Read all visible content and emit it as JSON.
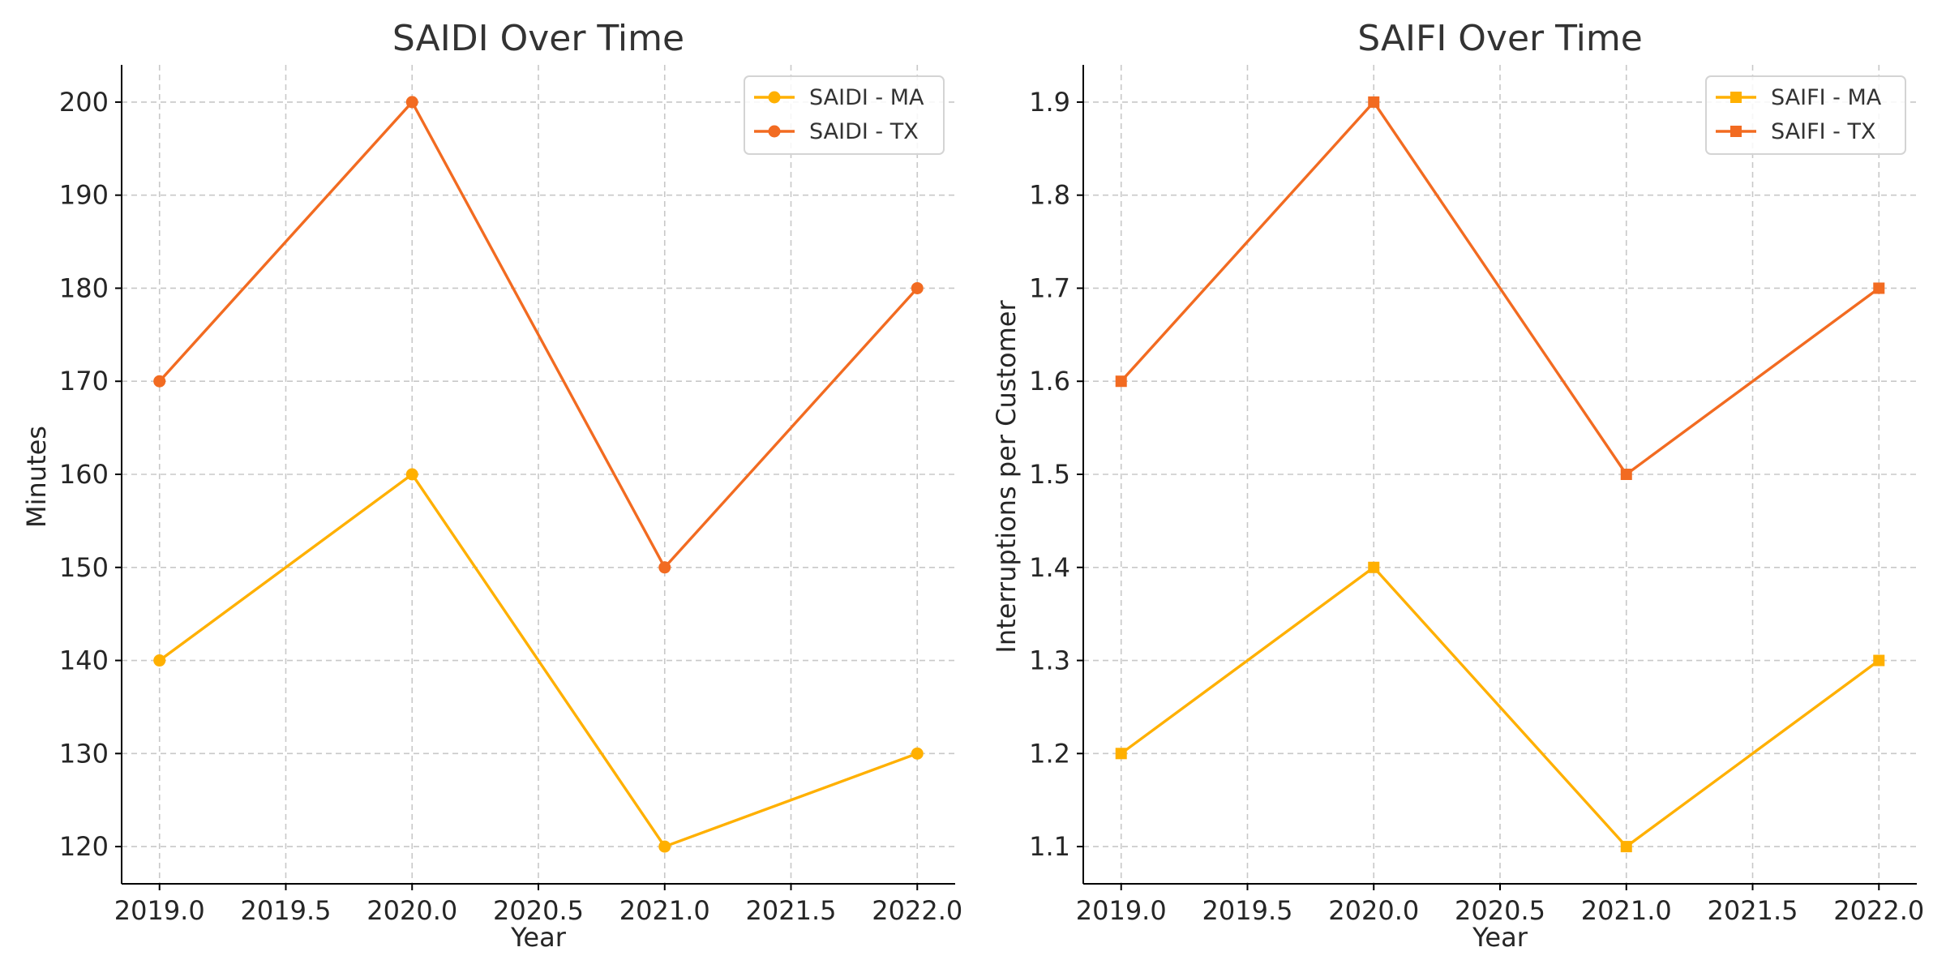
{
  "chart_data": [
    {
      "type": "line",
      "title": "SAIDI Over Time",
      "xlabel": "Year",
      "ylabel": "Minutes",
      "x": [
        2019,
        2020,
        2021,
        2022
      ],
      "xlim": [
        2018.85,
        2022.15
      ],
      "ylim": [
        116,
        204
      ],
      "xticks": [
        2019.0,
        2019.5,
        2020.0,
        2020.5,
        2021.0,
        2021.5,
        2022.0
      ],
      "xtick_labels": [
        "2019.0",
        "2019.5",
        "2020.0",
        "2020.5",
        "2021.0",
        "2021.5",
        "2022.0"
      ],
      "yticks": [
        120,
        130,
        140,
        150,
        160,
        170,
        180,
        190,
        200
      ],
      "ytick_labels": [
        "120",
        "130",
        "140",
        "150",
        "160",
        "170",
        "180",
        "190",
        "200"
      ],
      "grid": true,
      "legend_position": "top-right",
      "marker": "circle",
      "series": [
        {
          "name": "SAIDI - MA",
          "color": "#FFB000",
          "values": [
            140,
            160,
            120,
            130
          ]
        },
        {
          "name": "SAIDI - TX",
          "color": "#F26B21",
          "values": [
            170,
            200,
            150,
            180
          ]
        }
      ]
    },
    {
      "type": "line",
      "title": "SAIFI Over Time",
      "xlabel": "Year",
      "ylabel": "Interruptions per Customer",
      "x": [
        2019,
        2020,
        2021,
        2022
      ],
      "xlim": [
        2018.85,
        2022.15
      ],
      "ylim": [
        1.06,
        1.94
      ],
      "xticks": [
        2019.0,
        2019.5,
        2020.0,
        2020.5,
        2021.0,
        2021.5,
        2022.0
      ],
      "xtick_labels": [
        "2019.0",
        "2019.5",
        "2020.0",
        "2020.5",
        "2021.0",
        "2021.5",
        "2022.0"
      ],
      "yticks": [
        1.1,
        1.2,
        1.3,
        1.4,
        1.5,
        1.6,
        1.7,
        1.8,
        1.9
      ],
      "ytick_labels": [
        "1.1",
        "1.2",
        "1.3",
        "1.4",
        "1.5",
        "1.6",
        "1.7",
        "1.8",
        "1.9"
      ],
      "grid": true,
      "legend_position": "top-right",
      "marker": "square",
      "series": [
        {
          "name": "SAIFI - MA",
          "color": "#FFB000",
          "values": [
            1.2,
            1.4,
            1.1,
            1.3
          ]
        },
        {
          "name": "SAIFI - TX",
          "color": "#F26B21",
          "values": [
            1.6,
            1.9,
            1.5,
            1.7
          ]
        }
      ]
    }
  ]
}
